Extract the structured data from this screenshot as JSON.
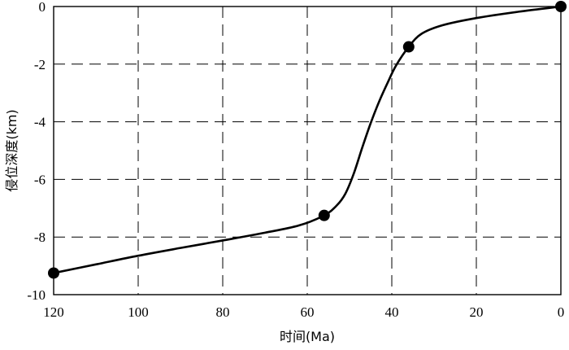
{
  "chart_data": {
    "type": "line",
    "title": "",
    "xlabel": "时间(Ma)",
    "ylabel": "侵位深度(km)",
    "xlim": [
      120,
      0
    ],
    "ylim": [
      -10,
      0
    ],
    "x_reversed": true,
    "x_ticks": [
      120,
      100,
      80,
      60,
      40,
      20,
      0
    ],
    "y_ticks": [
      0,
      -2,
      -4,
      -6,
      -8,
      -10
    ],
    "grid": true,
    "grid_style": "dashed",
    "series": [
      {
        "curve": [
          [
            120,
            -9.25
          ],
          [
            110,
            -8.95
          ],
          [
            100,
            -8.65
          ],
          [
            90,
            -8.38
          ],
          [
            80,
            -8.12
          ],
          [
            70,
            -7.85
          ],
          [
            62,
            -7.6
          ],
          [
            56,
            -7.25
          ],
          [
            53,
            -6.9
          ],
          [
            51,
            -6.5
          ],
          [
            49,
            -5.8
          ],
          [
            47,
            -4.9
          ],
          [
            45,
            -4.05
          ],
          [
            43,
            -3.3
          ],
          [
            41,
            -2.65
          ],
          [
            39,
            -2.05
          ],
          [
            36,
            -1.4
          ],
          [
            33,
            -0.95
          ],
          [
            28,
            -0.65
          ],
          [
            20,
            -0.4
          ],
          [
            10,
            -0.18
          ],
          [
            0,
            0
          ]
        ],
        "markers": [
          [
            120,
            -9.25
          ],
          [
            56,
            -7.25
          ],
          [
            36,
            -1.4
          ],
          [
            0,
            0
          ]
        ]
      }
    ]
  }
}
